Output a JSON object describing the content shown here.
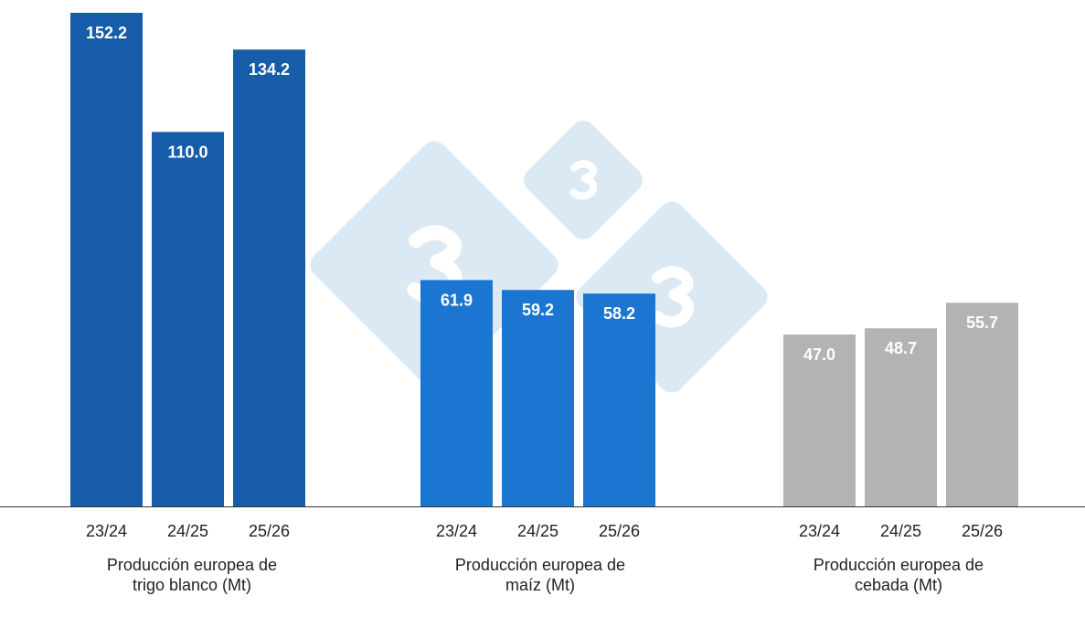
{
  "chart_data": {
    "type": "bar",
    "title": "",
    "groups": [
      {
        "label": "Producción europea de trigo blanco (Mt)",
        "label_lines": [
          "Producción europea de",
          "trigo blanco (Mt)"
        ],
        "color": "#175ca8",
        "ylim": [
          0,
          145
        ],
        "categories": [
          "23/24",
          "24/25",
          "25/26"
        ],
        "values": [
          152.2,
          110.0,
          134.2
        ]
      },
      {
        "label": "Producción europea de maíz (Mt)",
        "label_lines": [
          "Producción europea de",
          "maíz (Mt)"
        ],
        "color": "#1b76d1",
        "ylim": [
          0,
          135
        ],
        "categories": [
          "23/24",
          "24/25",
          "25/26"
        ],
        "values": [
          61.9,
          59.2,
          58.2
        ]
      },
      {
        "label": "Producción europea de cebada (Mt)",
        "label_lines": [
          "Producción europea de",
          "cebada (Mt)"
        ],
        "color": "#b3b3b3",
        "ylim": [
          0,
          135
        ],
        "categories": [
          "23/24",
          "24/25",
          "25/26"
        ],
        "values": [
          47.0,
          48.7,
          55.7
        ]
      }
    ],
    "grid": false,
    "legend": "none",
    "data_labels": true
  },
  "watermark": {
    "text": "3",
    "color": "#dbe9f5"
  }
}
